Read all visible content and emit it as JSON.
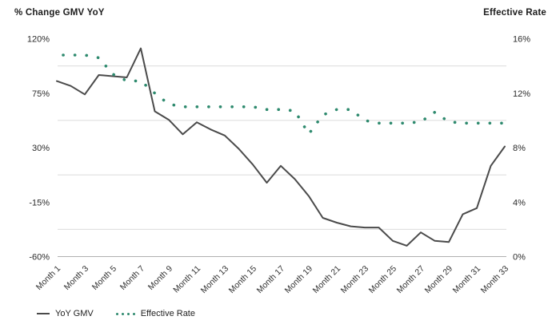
{
  "titles": {
    "left": "% Change GMV YoY",
    "right": "Effective Rate"
  },
  "legend": {
    "items": [
      {
        "label": "YoY GMV",
        "marker": "solid-line"
      },
      {
        "label": "Effective Rate",
        "marker": "dotted-line"
      }
    ]
  },
  "colors": {
    "yoy_line": "#4a4a4a",
    "effective_rate": "#2e8a6e",
    "gridline": "#dbdbdb",
    "baseline": "#b0b0b0",
    "title_text": "#1c1c1c",
    "tick_text": "#2b2b2b",
    "x_label_text": "#333333"
  },
  "chart_data": {
    "type": "line",
    "n_points": 33,
    "x_tick_labels": [
      "Month 1",
      "Month 3",
      "Month 5",
      "Month 7",
      "Month 9",
      "Month 11",
      "Month 13",
      "Month 15",
      "Month 17",
      "Month 19",
      "Month 21",
      "Month 23",
      "Month 25",
      "Month 27",
      "Month 29",
      "Month 31",
      "Month 33"
    ],
    "left_axis": {
      "title": "% Change GMV YoY",
      "tick_labels": [
        "120%",
        "75%",
        "30%",
        "-15%",
        "-60%"
      ],
      "tick_values": [
        120,
        75,
        30,
        -15,
        -60
      ],
      "min": -60,
      "max": 120
    },
    "right_axis": {
      "title": "Effective Rate",
      "tick_labels": [
        "16%",
        "12%",
        "8%",
        "4%",
        "0%"
      ],
      "tick_values": [
        16,
        12,
        8,
        4,
        0
      ],
      "min": 0,
      "max": 16
    },
    "grid": "horizontal-lines-midway-between-ticks",
    "legend_position": "bottom-left",
    "series": [
      {
        "name": "YoY GMV",
        "axis": "left",
        "line_style": "solid",
        "color": "#4a4a4a",
        "values": [
          85,
          81,
          74,
          90,
          89,
          88,
          112,
          60,
          53,
          41,
          51,
          45,
          40,
          29,
          16,
          1,
          15,
          4,
          -10,
          -28,
          -32,
          -35,
          -36,
          -36,
          -47,
          -51,
          -40,
          -47,
          -48,
          -25,
          -20,
          15,
          31
        ]
      },
      {
        "name": "Effective Rate",
        "axis": "right",
        "line_style": "dotted",
        "color": "#2e8a6e",
        "values": [
          14.8,
          14.8,
          14.8,
          14.6,
          13.4,
          12.9,
          12.9,
          12.0,
          11.2,
          11.0,
          11.0,
          11.0,
          11.0,
          11.0,
          11.0,
          10.8,
          10.8,
          10.7,
          9.0,
          10.4,
          10.8,
          10.8,
          10.0,
          9.8,
          9.8,
          9.8,
          9.9,
          10.6,
          9.9,
          9.8,
          9.8,
          9.8,
          9.8
        ]
      }
    ]
  }
}
